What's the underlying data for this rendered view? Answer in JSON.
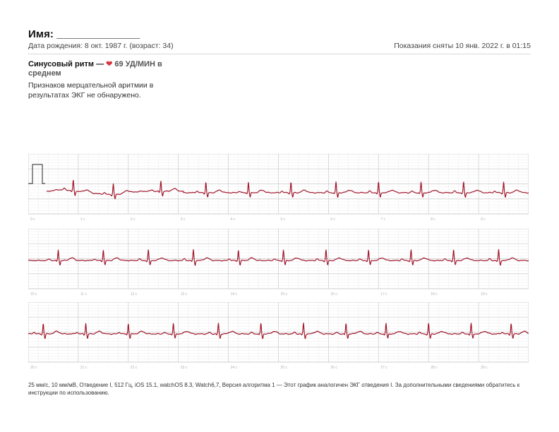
{
  "header": {
    "name_label": "Имя: ______________",
    "date_of_birth": "Дата рождения: 8 окт. 1987 г. (возраст: 34)",
    "recorded_at": "Показания сняты 10 янв. 2022 г. в 01:15"
  },
  "summary": {
    "rhythm": "Синусовый ритм — ",
    "heart_glyph": "❤",
    "bpm": "69 УД/МИН в среднем",
    "detail": "Признаков мерцательной аритмии в результатах ЭКГ не обнаружено."
  },
  "strips": [
    {
      "tick_labels": [
        "0 с",
        "1 с",
        "2 с",
        "3 с",
        "4 с",
        "5 с",
        "6 с",
        "7 с",
        "8 с",
        "9 с"
      ]
    },
    {
      "tick_labels": [
        "10 с",
        "11 с",
        "12 с",
        "13 с",
        "14 с",
        "15 с",
        "16 с",
        "17 с",
        "18 с",
        "19 с"
      ]
    },
    {
      "tick_labels": [
        "20 с",
        "21 с",
        "22 с",
        "23 с",
        "24 с",
        "25 с",
        "26 с",
        "27 с",
        "28 с",
        "29 с"
      ]
    }
  ],
  "footer": {
    "text": "25 мм/с, 10 мм/мВ, Отведение I, 512 Гц, iOS 15.1, watchOS 8.3, Watch6,7, Версия алгоритма 1 — Этот график аналогичен ЭКГ отведения I. За дополнительными сведениями обратитесь к инструкции по использованию."
  },
  "colors": {
    "trace": "#a0182c",
    "grid_major": "#cfcfcf",
    "grid_minor": "#ececec",
    "heart": "#d8343f"
  }
}
